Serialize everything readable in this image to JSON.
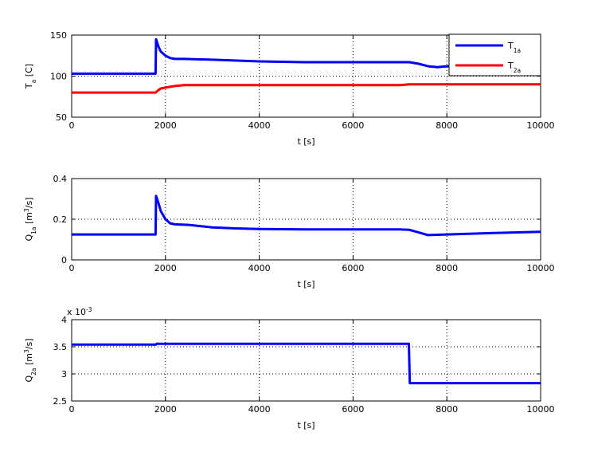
{
  "chart_data": [
    {
      "type": "line",
      "xlabel": "t [s]",
      "ylabel": "T_a [C]",
      "xlim": [
        0,
        10000
      ],
      "ylim": [
        50,
        150
      ],
      "xticks": [
        "0",
        "2000",
        "4000",
        "6000",
        "8000",
        "10000"
      ],
      "yticks": [
        "50",
        "100",
        "150"
      ],
      "grid": true,
      "legend_position": "top-right",
      "series": [
        {
          "name": "T_1a",
          "color": "#0000ff",
          "x": [
            0,
            1790,
            1800,
            1850,
            1900,
            2000,
            2100,
            2200,
            2400,
            3000,
            4000,
            5000,
            6000,
            7000,
            7200,
            7400,
            7600,
            7800,
            8000,
            9000,
            10000
          ],
          "y": [
            103,
            103,
            145,
            136,
            130,
            125,
            122,
            121,
            121,
            120,
            118,
            117,
            117,
            117,
            117,
            115,
            112,
            111,
            112,
            112,
            112
          ]
        },
        {
          "name": "T_2a",
          "color": "#ff0000",
          "x": [
            0,
            1790,
            1850,
            1900,
            2000,
            2100,
            2200,
            2400,
            3000,
            4000,
            5000,
            6000,
            7000,
            7200,
            7600,
            8000,
            9000,
            10000
          ],
          "y": [
            80,
            80,
            83,
            85,
            86,
            87,
            88,
            89,
            89,
            89,
            89,
            89,
            89,
            90,
            90,
            90,
            90,
            90
          ]
        }
      ]
    },
    {
      "type": "line",
      "xlabel": "t [s]",
      "ylabel": "Q_1a [m^3/s]",
      "xlim": [
        0,
        10000
      ],
      "ylim": [
        0,
        0.4
      ],
      "xticks": [
        "0",
        "2000",
        "4000",
        "6000",
        "8000",
        "10000"
      ],
      "yticks": [
        "0",
        "0.2",
        "0.4"
      ],
      "grid": true,
      "series": [
        {
          "color": "#0000ff",
          "x": [
            0,
            1790,
            1800,
            1850,
            1900,
            2000,
            2100,
            2200,
            2500,
            3000,
            3500,
            4000,
            5000,
            6000,
            7000,
            7200,
            7400,
            7600,
            8000,
            9000,
            10000
          ],
          "y": [
            0.125,
            0.125,
            0.315,
            0.28,
            0.24,
            0.2,
            0.18,
            0.175,
            0.172,
            0.16,
            0.155,
            0.152,
            0.15,
            0.15,
            0.15,
            0.148,
            0.135,
            0.122,
            0.125,
            0.132,
            0.138
          ]
        }
      ]
    },
    {
      "type": "line",
      "xlabel": "t [s]",
      "ylabel": "Q_2a [m^3/s]",
      "axis_multiplier": "x 10^-3",
      "xlim": [
        0,
        10000
      ],
      "ylim": [
        2.5,
        4
      ],
      "xticks": [
        "0",
        "2000",
        "4000",
        "6000",
        "8000",
        "10000"
      ],
      "yticks": [
        "2.5",
        "3",
        "3.5",
        "4"
      ],
      "grid": true,
      "series": [
        {
          "color": "#0000ff",
          "x": [
            0,
            1800,
            1810,
            7190,
            7210,
            10000
          ],
          "y": [
            3.54,
            3.54,
            3.555,
            3.555,
            2.83,
            2.83
          ]
        }
      ]
    }
  ]
}
